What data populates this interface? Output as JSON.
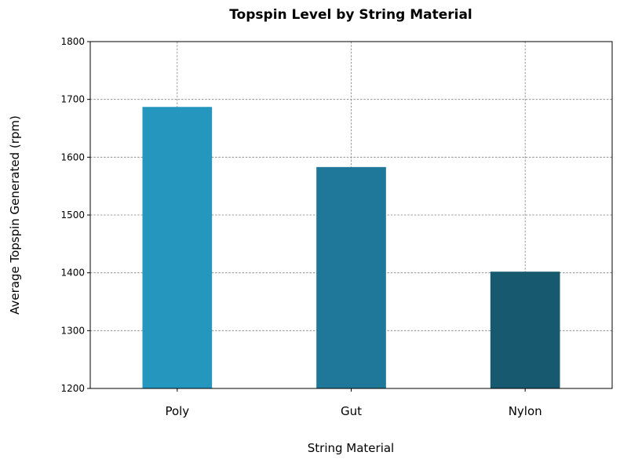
{
  "chart_data": {
    "type": "bar",
    "title": "Topspin Level by String Material",
    "xlabel": "String Material",
    "ylabel": "Average Topspin Generated (rpm)",
    "categories": [
      "Poly",
      "Gut",
      "Nylon"
    ],
    "values": [
      1687,
      1583,
      1402
    ],
    "ylim": [
      1200,
      1800
    ],
    "yticks": [
      1200,
      1300,
      1400,
      1500,
      1600,
      1700,
      1800
    ],
    "grid": true,
    "colors": [
      "#2596be",
      "#1f7899",
      "#175a6f"
    ]
  }
}
